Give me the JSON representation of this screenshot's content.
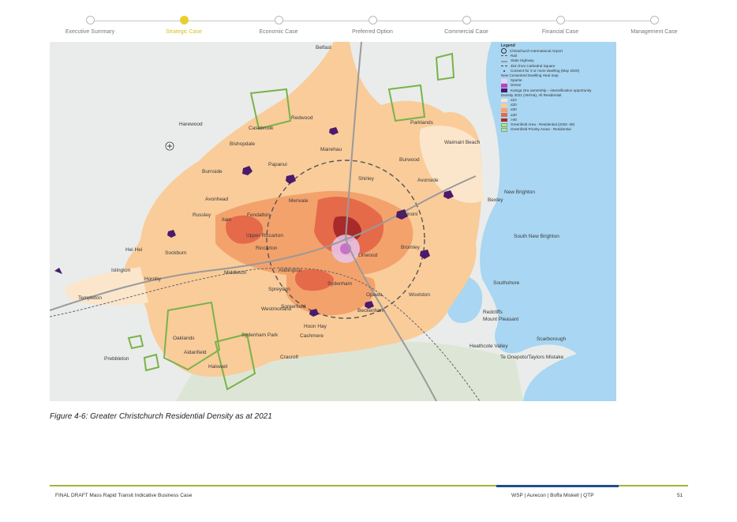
{
  "progress": {
    "steps": [
      {
        "label": "Executive Summary",
        "active": false
      },
      {
        "label": "Strategic Case",
        "active": true
      },
      {
        "label": "Economic Case",
        "active": false
      },
      {
        "label": "Preferred Option",
        "active": false
      },
      {
        "label": "Commercial Case",
        "active": false
      },
      {
        "label": "Financial Case",
        "active": false
      },
      {
        "label": "Management Case",
        "active": false
      }
    ]
  },
  "map": {
    "places": [
      "Belfast",
      "Harewood",
      "Casebrook",
      "Redwood",
      "Bishopdale",
      "Papanui",
      "Burnside",
      "Mairehau",
      "Shirley",
      "Burwood",
      "Parklands",
      "Waimairi Beach",
      "Avonside",
      "Avonhead",
      "Russley",
      "Merivale",
      "Fendalton",
      "Wainoni",
      "Bexley",
      "New Brighton",
      "Ilam",
      "Upper Riccarton",
      "Riccarton",
      "Linwood",
      "Bromley",
      "South New Brighton",
      "Hornby",
      "Sockburn",
      "Hei Hei",
      "Middleton",
      "Addington",
      "Sydenham",
      "Woolston",
      "Southshore",
      "Islington",
      "Templeton",
      "Spreydon",
      "Opawa",
      "Hoon Hay",
      "Somerfield",
      "Beckenham",
      "Redcliffs",
      "Mount Pleasant",
      "Halswell",
      "Oaklands",
      "Cashmere",
      "Cracroft",
      "Westmorland",
      "Heathcote Valley",
      "Scarborough",
      "Prebbleton",
      "Te Onepoto/Taylors Mistake",
      "Aidanfield",
      "Sydenham Park"
    ],
    "legend": {
      "title": "Legend",
      "items": [
        "Christchurch International Airport",
        "Rail",
        "State Highway",
        "4km from Cathedral Square",
        "Consent for 3 or more dwelling (May 2020)",
        "New Consented Dwelling Heat map",
        "Sparse",
        "Dense",
        "Kainga Ora ownership – intensification opportunity",
        "Density 2021 (HH/Ha), All Residential",
        "≤10",
        "≤20",
        "≤30",
        "≤40",
        ">40",
        "Greenfield Area - Residential (2028 -38)",
        "Greenfield Priority Areas - Residential"
      ]
    },
    "colors": {
      "water": "#a9d6f2",
      "land": "#e9ecea",
      "d10": "#fbe6cc",
      "d20": "#f9cc9a",
      "d30": "#f3a26c",
      "d40": "#e56a4a",
      "d50": "#a92a2a",
      "kainga": "#4b1a6b",
      "greenfield": "#7ab24a"
    }
  },
  "caption": "Figure 4-6: Greater Christchurch Residential Density as at 2021",
  "footer": {
    "left": "FINAL DRAFT Mass Rapid Transit Indicative Business Case",
    "right": "WSP | Aurecon | Boffa Miskell | QTP",
    "page": "51"
  }
}
